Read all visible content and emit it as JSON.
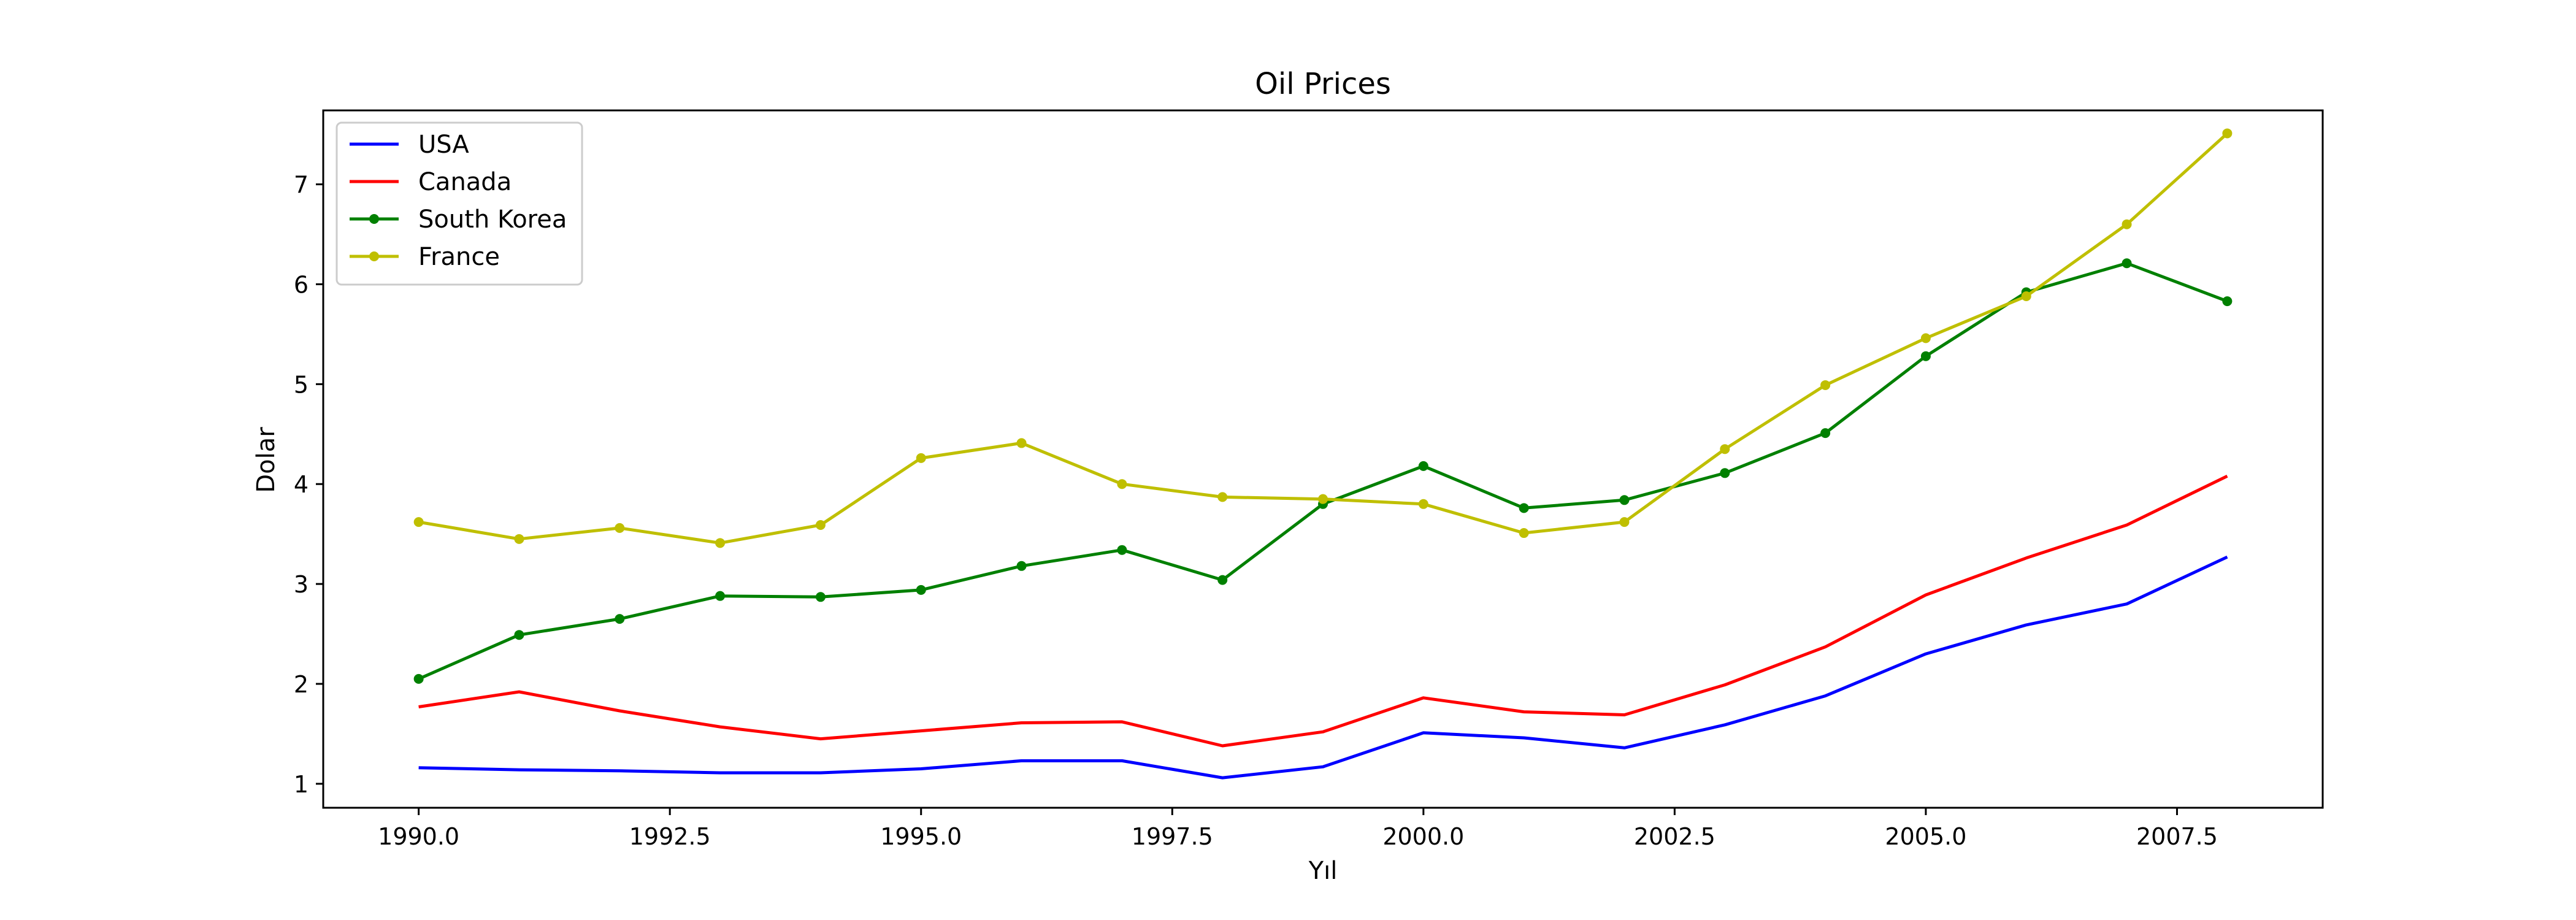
{
  "chart_data": {
    "type": "line",
    "title": "Oil Prices",
    "xlabel": "Yıl",
    "ylabel": "Dolar",
    "xlim": [
      1989.05,
      2008.95
    ],
    "ylim": [
      0.76,
      7.74
    ],
    "xticks": [
      1990.0,
      1992.5,
      1995.0,
      1997.5,
      2000.0,
      2002.5,
      2005.0,
      2007.5
    ],
    "xtick_labels": [
      "1990.0",
      "1992.5",
      "1995.0",
      "1997.5",
      "2000.0",
      "2002.5",
      "2005.0",
      "2007.5"
    ],
    "yticks": [
      1,
      2,
      3,
      4,
      5,
      6,
      7
    ],
    "ytick_labels": [
      "1",
      "2",
      "3",
      "4",
      "5",
      "6",
      "7"
    ],
    "grid": false,
    "legend_position": "top-left",
    "x": [
      1990,
      1991,
      1992,
      1993,
      1994,
      1995,
      1996,
      1997,
      1998,
      1999,
      2000,
      2001,
      2002,
      2003,
      2004,
      2005,
      2006,
      2007,
      2008
    ],
    "series": [
      {
        "name": "USA",
        "color": "#0000ff",
        "marker": false,
        "values": [
          1.16,
          1.14,
          1.13,
          1.11,
          1.11,
          1.15,
          1.23,
          1.23,
          1.06,
          1.17,
          1.51,
          1.46,
          1.36,
          1.59,
          1.88,
          2.3,
          2.59,
          2.8,
          3.27
        ]
      },
      {
        "name": "Canada",
        "color": "#ff0000",
        "marker": false,
        "values": [
          1.77,
          1.92,
          1.73,
          1.57,
          1.45,
          1.53,
          1.61,
          1.62,
          1.38,
          1.52,
          1.86,
          1.72,
          1.69,
          1.99,
          2.37,
          2.89,
          3.26,
          3.59,
          4.08
        ]
      },
      {
        "name": "South Korea",
        "color": "#008000",
        "marker": true,
        "values": [
          2.05,
          2.49,
          2.65,
          2.88,
          2.87,
          2.94,
          3.18,
          3.34,
          3.04,
          3.8,
          4.18,
          3.76,
          3.84,
          4.11,
          4.51,
          5.28,
          5.92,
          6.21,
          5.83
        ]
      },
      {
        "name": "France",
        "color": "#bfbf00",
        "marker": true,
        "values": [
          3.62,
          3.45,
          3.56,
          3.41,
          3.59,
          4.26,
          4.41,
          4.0,
          3.87,
          3.85,
          3.8,
          3.51,
          3.62,
          4.35,
          4.99,
          5.46,
          5.88,
          6.6,
          7.51
        ]
      }
    ]
  }
}
